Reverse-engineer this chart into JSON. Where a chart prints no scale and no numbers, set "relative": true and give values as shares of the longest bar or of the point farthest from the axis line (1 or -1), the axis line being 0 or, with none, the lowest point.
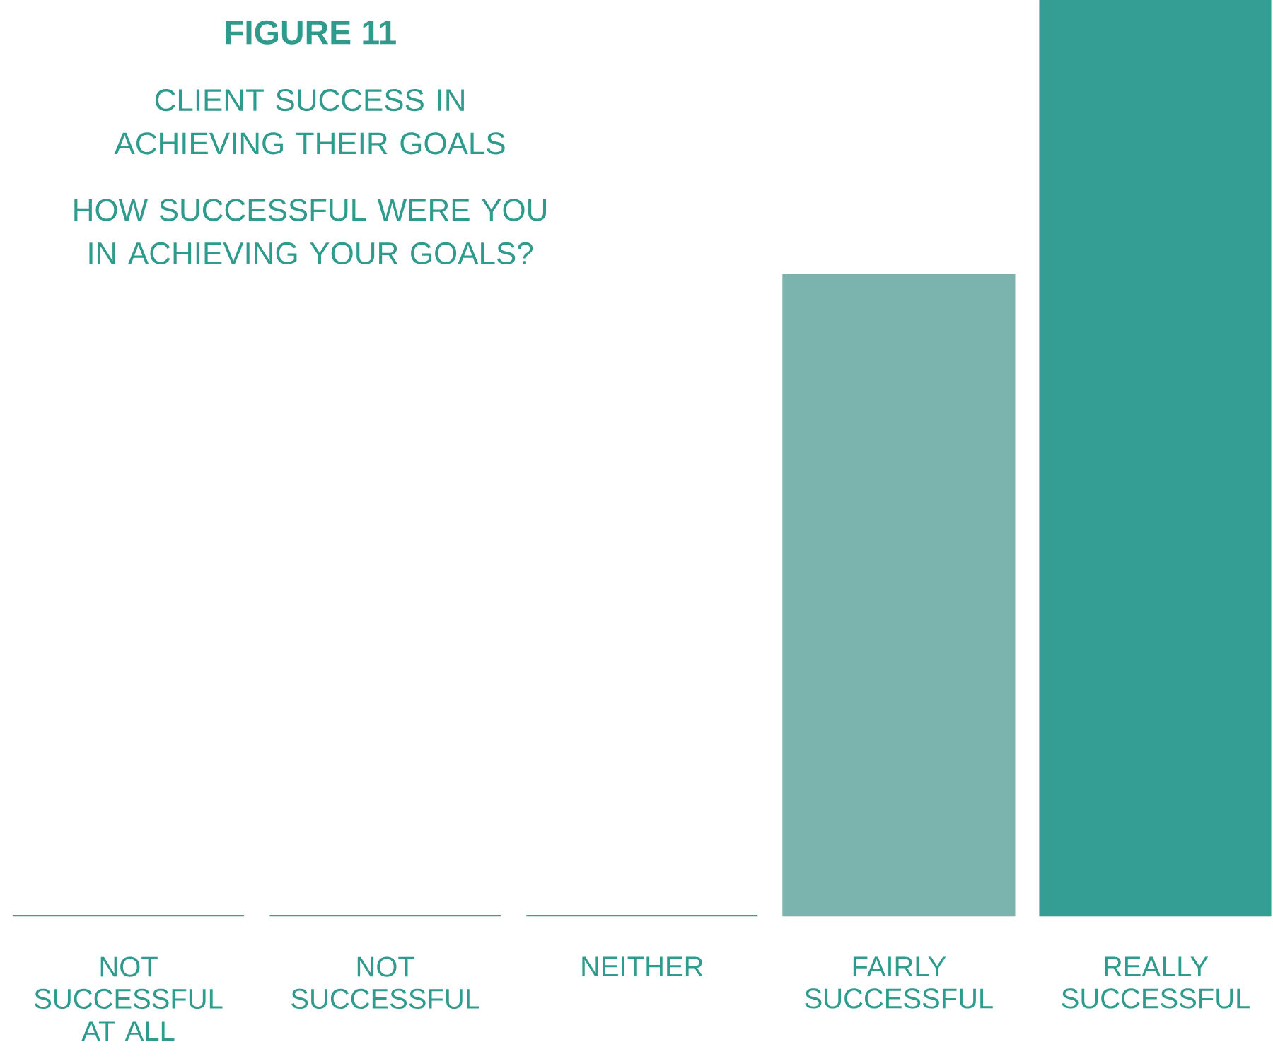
{
  "chart_data": {
    "type": "bar",
    "title": "FIGURE 11",
    "subtitle": "CLIENT SUCCESS IN ACHIEVING THEIR GOALS",
    "annotations": [
      "HOW SUCCESSFUL WERE YOU IN ACHIEVING YOUR GOALS?"
    ],
    "categories": [
      "NOT SUCCESSFUL AT ALL",
      "NOT SUCCESSFUL",
      "NEITHER",
      "FAIRLY SUCCESSFUL",
      "REALLY SUCCESSFUL"
    ],
    "values": [
      0,
      0,
      0,
      0.7,
      1
    ],
    "colors": [
      "#349e94",
      "#349e94",
      "#349e94",
      "#7bb4ae",
      "#349e94"
    ],
    "relative": true
  }
}
